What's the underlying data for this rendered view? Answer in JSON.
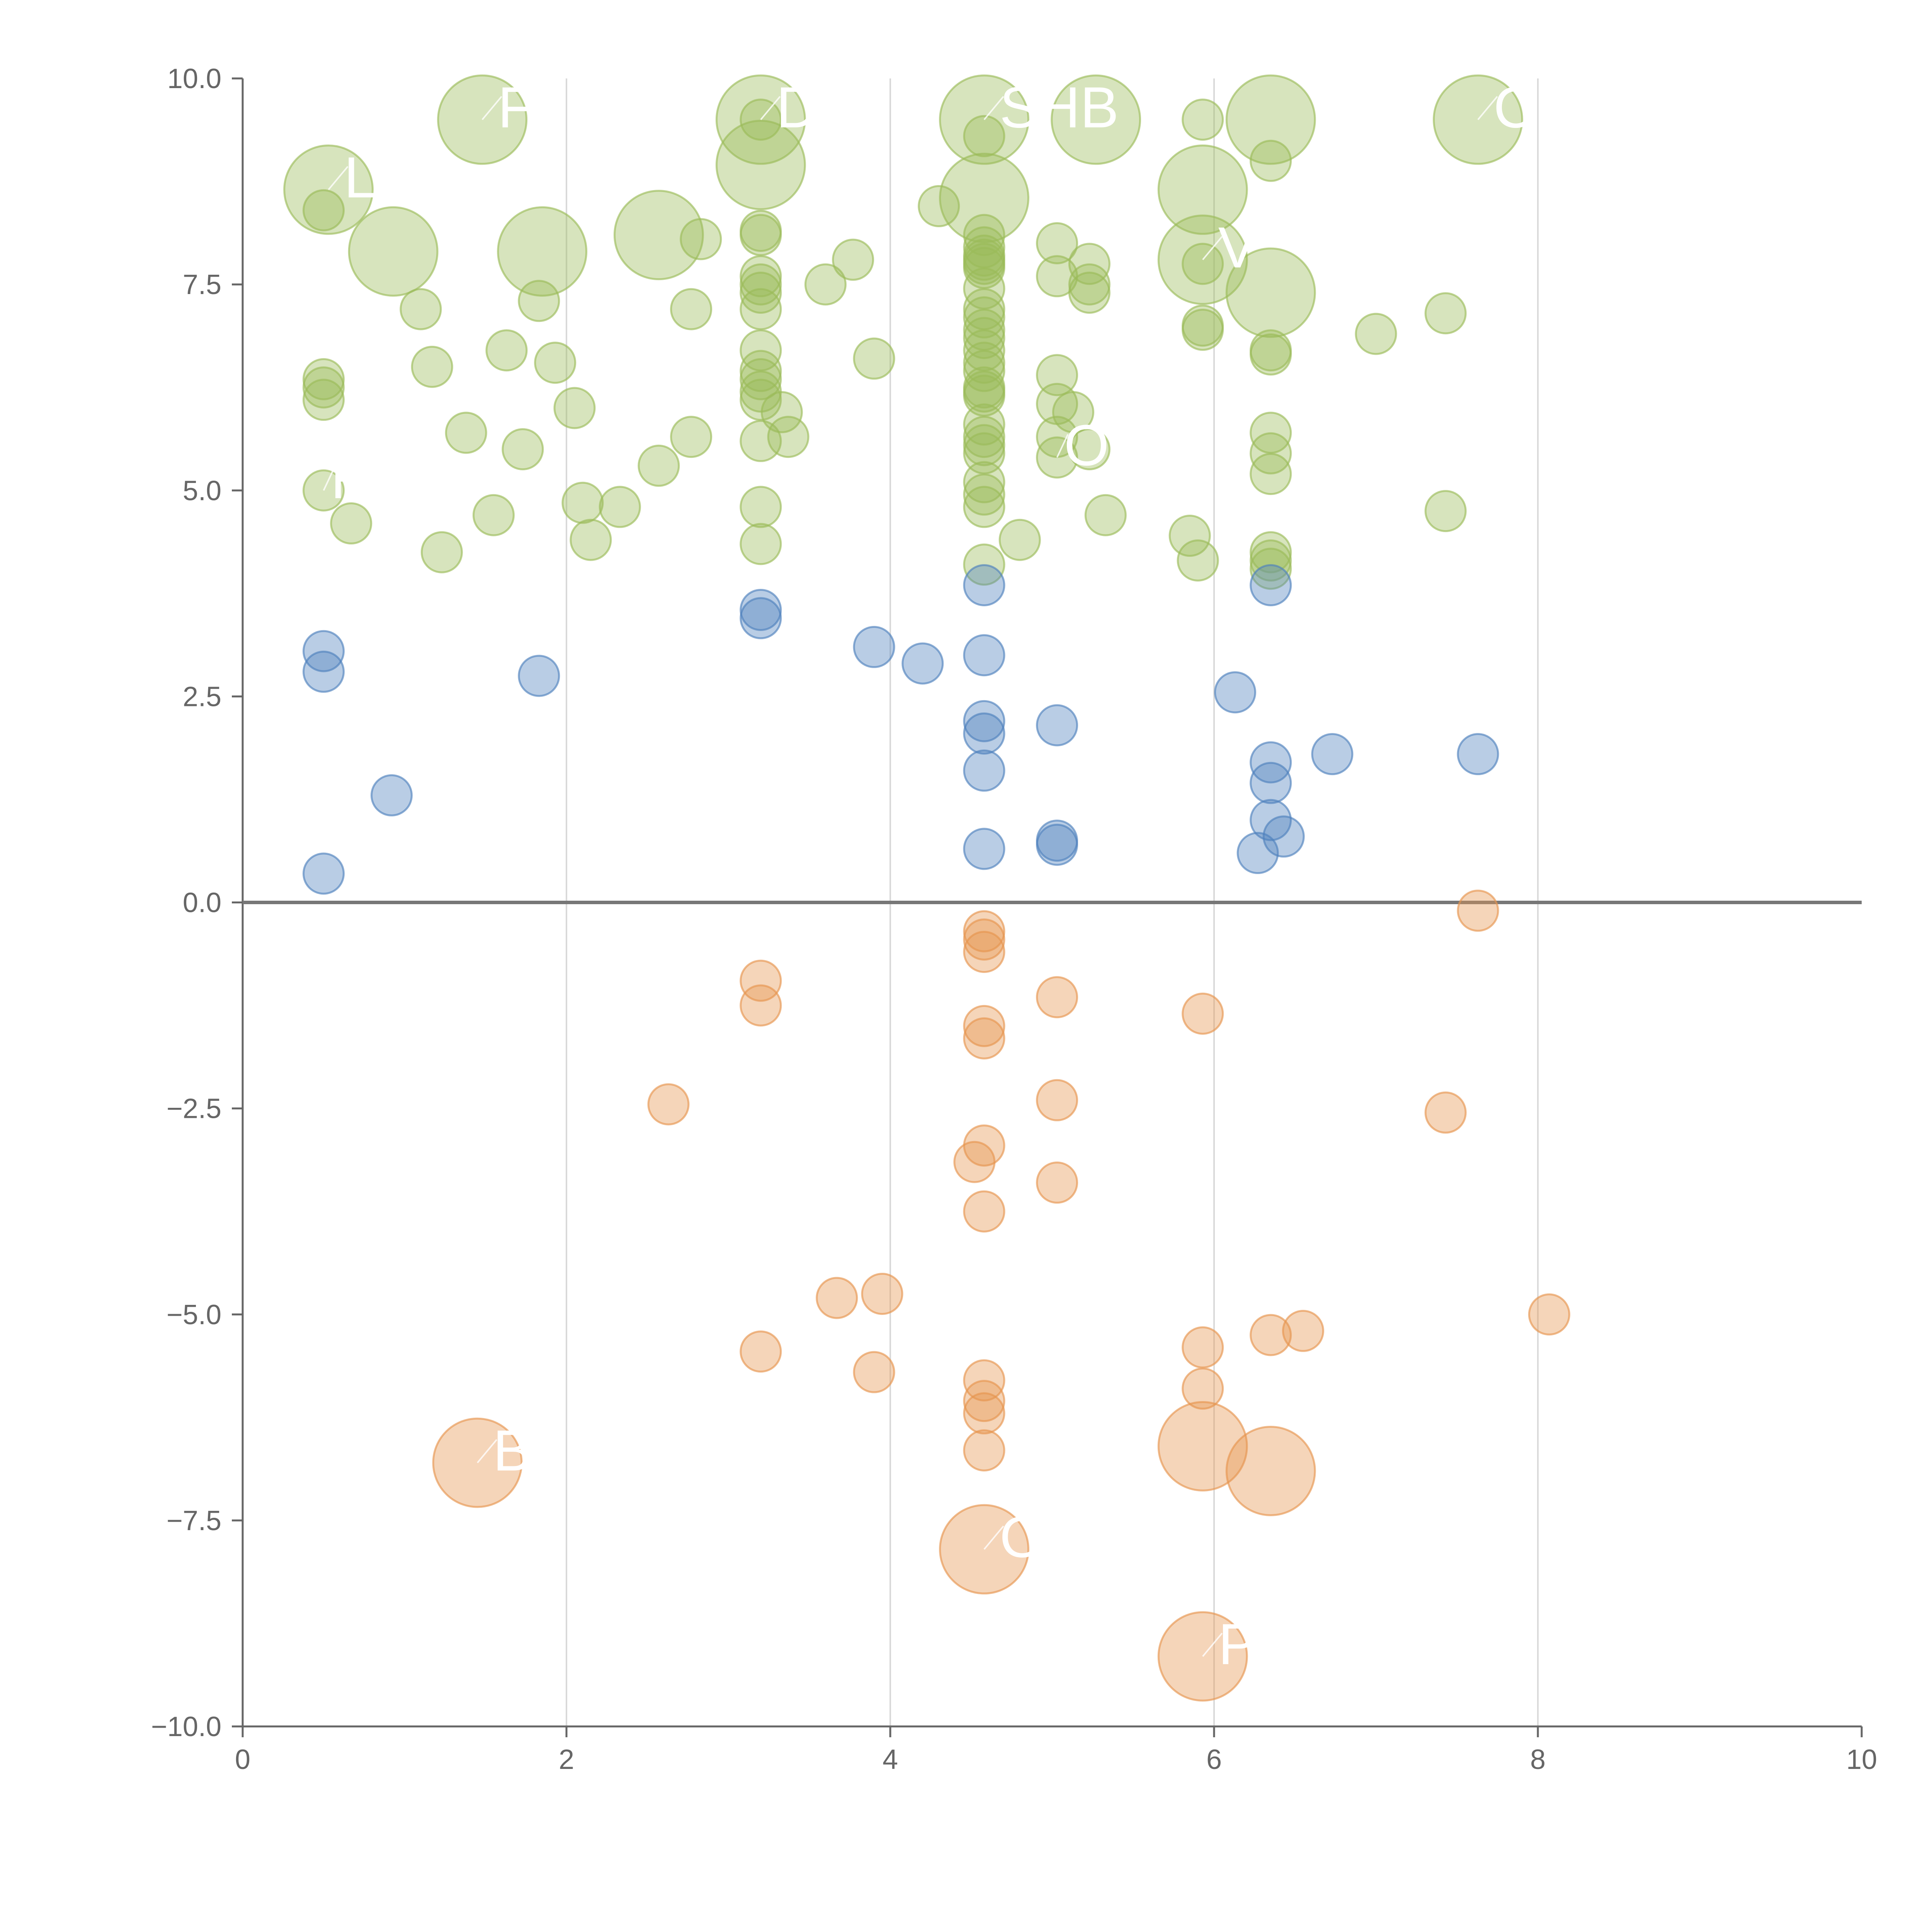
{
  "chart_data": {
    "type": "scatter",
    "title": "",
    "xlabel": "",
    "ylabel": "",
    "xlim": [
      0,
      10
    ],
    "ylim": [
      -10,
      10
    ],
    "x_ticks": [
      "0",
      "2",
      "4",
      "6",
      "8",
      "10"
    ],
    "y_ticks": [
      "10.0",
      "7.5",
      "5.0",
      "2.5",
      "0.0",
      "−2.5",
      "−5.0",
      "−7.5",
      "−10.0"
    ],
    "grid": "vertical gridlines at x = 2, 4, 6, 8",
    "reference_line": {
      "y": 0
    },
    "colors": {
      "high": "#9bbb59",
      "mid": "#4f81bd",
      "negative": "#e6954f"
    },
    "series": [
      {
        "color_key": "high",
        "points": [
          {
            "x": 0.5,
            "y": 8.4,
            "r": 1
          },
          {
            "x": 0.53,
            "y": 8.65,
            "r": 2.2,
            "label": "L"
          },
          {
            "x": 0.5,
            "y": 6.35,
            "r": 1
          },
          {
            "x": 0.5,
            "y": 6.25,
            "r": 1
          },
          {
            "x": 0.5,
            "y": 6.1,
            "r": 1
          },
          {
            "x": 0.5,
            "y": 5.0,
            "r": 1,
            "label": "RO"
          },
          {
            "x": 0.67,
            "y": 4.6,
            "r": 1
          },
          {
            "x": 0.93,
            "y": 7.9,
            "r": 2.2
          },
          {
            "x": 1.1,
            "y": 7.2,
            "r": 1
          },
          {
            "x": 1.17,
            "y": 6.5,
            "r": 1
          },
          {
            "x": 1.23,
            "y": 4.25,
            "r": 1
          },
          {
            "x": 1.38,
            "y": 5.7,
            "r": 1
          },
          {
            "x": 1.48,
            "y": 9.5,
            "r": 2.2,
            "label": "F"
          },
          {
            "x": 1.55,
            "y": 4.7,
            "r": 1
          },
          {
            "x": 1.63,
            "y": 6.7,
            "r": 1
          },
          {
            "x": 1.73,
            "y": 5.5,
            "r": 1
          },
          {
            "x": 1.83,
            "y": 7.3,
            "r": 1
          },
          {
            "x": 1.85,
            "y": 7.9,
            "r": 2.2
          },
          {
            "x": 1.93,
            "y": 6.55,
            "r": 1
          },
          {
            "x": 2.05,
            "y": 6.0,
            "r": 1
          },
          {
            "x": 2.1,
            "y": 4.85,
            "r": 1
          },
          {
            "x": 2.15,
            "y": 4.4,
            "r": 1
          },
          {
            "x": 2.33,
            "y": 4.8,
            "r": 1
          },
          {
            "x": 2.57,
            "y": 5.3,
            "r": 1
          },
          {
            "x": 2.57,
            "y": 8.1,
            "r": 2.2
          },
          {
            "x": 2.77,
            "y": 7.2,
            "r": 1
          },
          {
            "x": 2.77,
            "y": 5.65,
            "r": 1
          },
          {
            "x": 2.83,
            "y": 8.05,
            "r": 1
          },
          {
            "x": 3.2,
            "y": 9.5,
            "r": 2.2,
            "label": "D"
          },
          {
            "x": 3.2,
            "y": 8.95,
            "r": 2.2
          },
          {
            "x": 3.2,
            "y": 9.5,
            "r": 1
          },
          {
            "x": 3.2,
            "y": 8.15,
            "r": 1
          },
          {
            "x": 3.2,
            "y": 8.1,
            "r": 1
          },
          {
            "x": 3.2,
            "y": 7.6,
            "r": 1
          },
          {
            "x": 3.2,
            "y": 7.5,
            "r": 1
          },
          {
            "x": 3.2,
            "y": 7.4,
            "r": 1
          },
          {
            "x": 3.2,
            "y": 7.2,
            "r": 1
          },
          {
            "x": 3.2,
            "y": 6.7,
            "r": 1
          },
          {
            "x": 3.2,
            "y": 6.45,
            "r": 1
          },
          {
            "x": 3.2,
            "y": 6.35,
            "r": 1
          },
          {
            "x": 3.2,
            "y": 6.2,
            "r": 1
          },
          {
            "x": 3.2,
            "y": 6.1,
            "r": 1
          },
          {
            "x": 3.2,
            "y": 5.6,
            "r": 1
          },
          {
            "x": 3.2,
            "y": 4.8,
            "r": 1
          },
          {
            "x": 3.2,
            "y": 4.35,
            "r": 1
          },
          {
            "x": 3.33,
            "y": 5.95,
            "r": 1
          },
          {
            "x": 3.37,
            "y": 5.65,
            "r": 1
          },
          {
            "x": 3.6,
            "y": 7.5,
            "r": 1
          },
          {
            "x": 3.77,
            "y": 7.8,
            "r": 1
          },
          {
            "x": 3.9,
            "y": 6.6,
            "r": 1
          },
          {
            "x": 4.3,
            "y": 8.45,
            "r": 1
          },
          {
            "x": 4.58,
            "y": 9.5,
            "r": 2.2,
            "label": "SHB"
          },
          {
            "x": 4.58,
            "y": 8.55,
            "r": 2.2
          },
          {
            "x": 4.58,
            "y": 9.3,
            "r": 1
          },
          {
            "x": 4.58,
            "y": 8.1,
            "r": 1
          },
          {
            "x": 4.58,
            "y": 7.95,
            "r": 1
          },
          {
            "x": 4.58,
            "y": 7.85,
            "r": 1
          },
          {
            "x": 4.58,
            "y": 7.8,
            "r": 1
          },
          {
            "x": 4.58,
            "y": 7.75,
            "r": 1
          },
          {
            "x": 4.58,
            "y": 7.7,
            "r": 1
          },
          {
            "x": 4.58,
            "y": 7.45,
            "r": 1
          },
          {
            "x": 4.58,
            "y": 7.2,
            "r": 1
          },
          {
            "x": 4.58,
            "y": 7.1,
            "r": 1
          },
          {
            "x": 4.58,
            "y": 6.95,
            "r": 1
          },
          {
            "x": 4.58,
            "y": 6.85,
            "r": 1
          },
          {
            "x": 4.58,
            "y": 6.7,
            "r": 1
          },
          {
            "x": 4.58,
            "y": 6.55,
            "r": 1
          },
          {
            "x": 4.58,
            "y": 6.45,
            "r": 1
          },
          {
            "x": 4.58,
            "y": 6.25,
            "r": 1
          },
          {
            "x": 4.58,
            "y": 6.2,
            "r": 1
          },
          {
            "x": 4.58,
            "y": 6.15,
            "r": 1
          },
          {
            "x": 4.58,
            "y": 5.8,
            "r": 1
          },
          {
            "x": 4.58,
            "y": 5.65,
            "r": 1
          },
          {
            "x": 4.58,
            "y": 5.55,
            "r": 1
          },
          {
            "x": 4.58,
            "y": 5.45,
            "r": 1
          },
          {
            "x": 4.58,
            "y": 5.1,
            "r": 1
          },
          {
            "x": 4.58,
            "y": 4.95,
            "r": 1
          },
          {
            "x": 4.58,
            "y": 4.8,
            "r": 1
          },
          {
            "x": 4.58,
            "y": 4.1,
            "r": 1
          },
          {
            "x": 4.8,
            "y": 4.4,
            "r": 1
          },
          {
            "x": 5.03,
            "y": 8.0,
            "r": 1
          },
          {
            "x": 5.03,
            "y": 7.6,
            "r": 1
          },
          {
            "x": 5.03,
            "y": 6.4,
            "r": 1
          },
          {
            "x": 5.03,
            "y": 6.05,
            "r": 1
          },
          {
            "x": 5.03,
            "y": 5.65,
            "r": 1
          },
          {
            "x": 5.03,
            "y": 5.4,
            "r": 1,
            "label": "OC"
          },
          {
            "x": 5.13,
            "y": 5.95,
            "r": 1
          },
          {
            "x": 5.27,
            "y": 9.5,
            "r": 2.2
          },
          {
            "x": 5.23,
            "y": 7.75,
            "r": 1
          },
          {
            "x": 5.23,
            "y": 7.5,
            "r": 1
          },
          {
            "x": 5.23,
            "y": 7.4,
            "r": 1
          },
          {
            "x": 5.23,
            "y": 5.5,
            "r": 1
          },
          {
            "x": 5.33,
            "y": 4.7,
            "r": 1
          },
          {
            "x": 5.85,
            "y": 4.45,
            "r": 1
          },
          {
            "x": 5.9,
            "y": 4.15,
            "r": 1
          },
          {
            "x": 5.93,
            "y": 9.5,
            "r": 1
          },
          {
            "x": 5.93,
            "y": 8.65,
            "r": 2.2
          },
          {
            "x": 5.93,
            "y": 7.8,
            "r": 2.2,
            "label": "V"
          },
          {
            "x": 5.93,
            "y": 7.75,
            "r": 1
          },
          {
            "x": 5.93,
            "y": 7.0,
            "r": 1
          },
          {
            "x": 5.93,
            "y": 6.95,
            "r": 1
          },
          {
            "x": 6.35,
            "y": 9.5,
            "r": 2.2
          },
          {
            "x": 6.35,
            "y": 9.0,
            "r": 1
          },
          {
            "x": 6.35,
            "y": 7.4,
            "r": 2.2
          },
          {
            "x": 6.35,
            "y": 6.7,
            "r": 1
          },
          {
            "x": 6.35,
            "y": 6.65,
            "r": 1
          },
          {
            "x": 6.35,
            "y": 5.7,
            "r": 1
          },
          {
            "x": 6.35,
            "y": 5.45,
            "r": 1
          },
          {
            "x": 6.35,
            "y": 5.2,
            "r": 1
          },
          {
            "x": 6.35,
            "y": 4.25,
            "r": 1
          },
          {
            "x": 6.35,
            "y": 4.15,
            "r": 1
          },
          {
            "x": 6.35,
            "y": 4.05,
            "r": 1
          },
          {
            "x": 7.0,
            "y": 6.9,
            "r": 1
          },
          {
            "x": 7.43,
            "y": 7.15,
            "r": 1
          },
          {
            "x": 7.43,
            "y": 4.75,
            "r": 1
          },
          {
            "x": 7.63,
            "y": 9.5,
            "r": 2.2,
            "label": "C"
          }
        ]
      },
      {
        "color_key": "mid",
        "points": [
          {
            "x": 0.5,
            "y": 3.05,
            "r": 1
          },
          {
            "x": 0.5,
            "y": 2.8,
            "r": 1
          },
          {
            "x": 0.5,
            "y": 0.35,
            "r": 1
          },
          {
            "x": 0.92,
            "y": 1.3,
            "r": 1
          },
          {
            "x": 1.83,
            "y": 2.75,
            "r": 1
          },
          {
            "x": 3.2,
            "y": 3.55,
            "r": 1
          },
          {
            "x": 3.2,
            "y": 3.45,
            "r": 1
          },
          {
            "x": 3.9,
            "y": 3.1,
            "r": 1
          },
          {
            "x": 4.2,
            "y": 2.9,
            "r": 1
          },
          {
            "x": 4.58,
            "y": 3.85,
            "r": 1
          },
          {
            "x": 4.58,
            "y": 3.0,
            "r": 1
          },
          {
            "x": 4.58,
            "y": 2.2,
            "r": 1
          },
          {
            "x": 4.58,
            "y": 2.05,
            "r": 1
          },
          {
            "x": 4.58,
            "y": 1.6,
            "r": 1
          },
          {
            "x": 4.58,
            "y": 0.65,
            "r": 1
          },
          {
            "x": 5.03,
            "y": 2.15,
            "r": 1
          },
          {
            "x": 5.03,
            "y": 0.75,
            "r": 1
          },
          {
            "x": 5.03,
            "y": 0.7,
            "r": 1
          },
          {
            "x": 6.13,
            "y": 2.55,
            "r": 1
          },
          {
            "x": 6.27,
            "y": 0.6,
            "r": 1
          },
          {
            "x": 6.35,
            "y": 3.85,
            "r": 1
          },
          {
            "x": 6.35,
            "y": 1.7,
            "r": 1
          },
          {
            "x": 6.35,
            "y": 1.45,
            "r": 1
          },
          {
            "x": 6.35,
            "y": 1.0,
            "r": 1
          },
          {
            "x": 6.43,
            "y": 0.8,
            "r": 1
          },
          {
            "x": 6.73,
            "y": 1.8,
            "r": 1
          },
          {
            "x": 7.63,
            "y": 1.8,
            "r": 1
          }
        ]
      },
      {
        "color_key": "negative",
        "points": [
          {
            "x": 7.63,
            "y": -0.1,
            "r": 1
          },
          {
            "x": 3.2,
            "y": -0.95,
            "r": 1
          },
          {
            "x": 3.2,
            "y": -1.25,
            "r": 1
          },
          {
            "x": 4.58,
            "y": -0.35,
            "r": 1
          },
          {
            "x": 4.58,
            "y": -0.45,
            "r": 1
          },
          {
            "x": 4.58,
            "y": -0.6,
            "r": 1
          },
          {
            "x": 4.58,
            "y": -1.5,
            "r": 1
          },
          {
            "x": 4.58,
            "y": -1.65,
            "r": 1
          },
          {
            "x": 4.58,
            "y": -2.95,
            "r": 1
          },
          {
            "x": 4.52,
            "y": -3.15,
            "r": 1
          },
          {
            "x": 4.58,
            "y": -3.75,
            "r": 1
          },
          {
            "x": 5.03,
            "y": -1.15,
            "r": 1
          },
          {
            "x": 5.03,
            "y": -2.4,
            "r": 1
          },
          {
            "x": 5.03,
            "y": -3.4,
            "r": 1
          },
          {
            "x": 5.93,
            "y": -1.35,
            "r": 1
          },
          {
            "x": 2.63,
            "y": -2.45,
            "r": 1
          },
          {
            "x": 7.43,
            "y": -2.55,
            "r": 1
          },
          {
            "x": 3.67,
            "y": -4.8,
            "r": 1
          },
          {
            "x": 3.95,
            "y": -4.75,
            "r": 1
          },
          {
            "x": 3.2,
            "y": -5.45,
            "r": 1
          },
          {
            "x": 3.9,
            "y": -5.7,
            "r": 1
          },
          {
            "x": 4.58,
            "y": -5.8,
            "r": 1
          },
          {
            "x": 4.58,
            "y": -6.05,
            "r": 1
          },
          {
            "x": 4.58,
            "y": -6.2,
            "r": 1
          },
          {
            "x": 4.58,
            "y": -6.65,
            "r": 1
          },
          {
            "x": 5.93,
            "y": -5.4,
            "r": 1
          },
          {
            "x": 5.93,
            "y": -5.9,
            "r": 1
          },
          {
            "x": 6.35,
            "y": -5.25,
            "r": 1
          },
          {
            "x": 6.55,
            "y": -5.2,
            "r": 1
          },
          {
            "x": 8.07,
            "y": -5.0,
            "r": 1
          },
          {
            "x": 1.45,
            "y": -6.8,
            "r": 2.2,
            "label": "B"
          },
          {
            "x": 5.93,
            "y": -6.6,
            "r": 2.2
          },
          {
            "x": 6.35,
            "y": -6.9,
            "r": 2.2
          },
          {
            "x": 4.58,
            "y": -7.85,
            "r": 2.2,
            "label": "O"
          },
          {
            "x": 5.93,
            "y": -9.15,
            "r": 2.2,
            "label": "P"
          }
        ]
      }
    ]
  }
}
